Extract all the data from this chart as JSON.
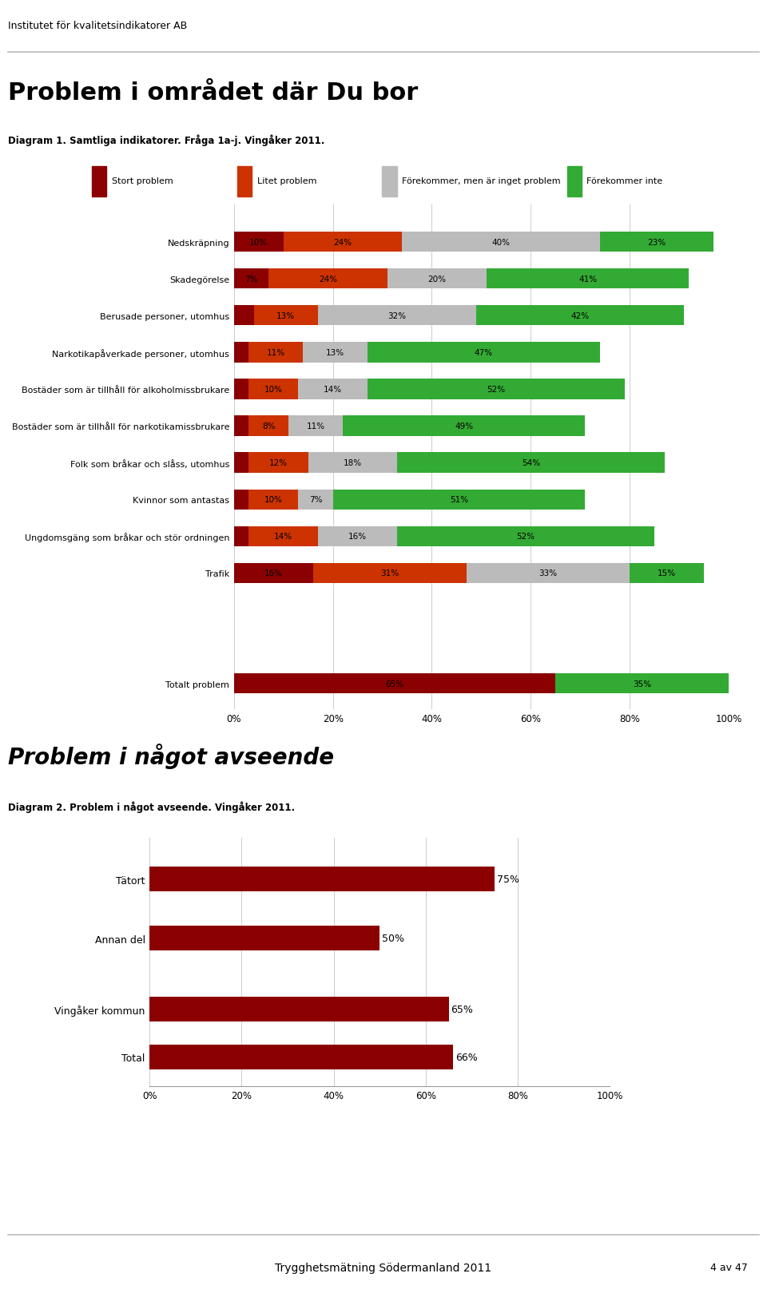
{
  "header_text": "Institutet för kvalitetsindikatorer AB",
  "title1": "Problem i området där Du bor",
  "subtitle1": "Diagram 1. Samtliga indikatorer. Fråga 1a-j. Vingåker 2011.",
  "legend_labels": [
    "Stort problem",
    "Litet problem",
    "Förekommer, men är inget problem",
    "Förekommer inte"
  ],
  "colors": [
    "#8B0000",
    "#CC3300",
    "#BBBBBB",
    "#33AA33"
  ],
  "categories1": [
    "Nedskräpning",
    "Skadegörelse",
    "Berusade personer, utomhus",
    "Narkotikapåverkade personer, utomhus",
    "Bostäder som är tillhåll för alkoholmissbrukare",
    "Bostäder som är tillhåll för narkotikamissbrukare",
    "Folk som bråkar och slåss, utomhus",
    "Kvinnor som antastas",
    "Ungdomsgäng som bråkar och stör ordningen",
    "Trafik",
    "Totalt problem"
  ],
  "data1": [
    [
      10,
      24,
      40,
      23
    ],
    [
      7,
      24,
      20,
      41
    ],
    [
      4,
      13,
      32,
      42
    ],
    [
      3,
      11,
      13,
      47
    ],
    [
      3,
      10,
      14,
      52
    ],
    [
      3,
      8,
      11,
      49
    ],
    [
      3,
      12,
      18,
      54
    ],
    [
      3,
      10,
      7,
      51
    ],
    [
      3,
      14,
      16,
      52
    ],
    [
      16,
      31,
      33,
      15
    ],
    [
      65,
      0,
      0,
      35
    ]
  ],
  "title2": "Problem i något avseende",
  "subtitle2": "Diagram 2. Problem i något avseende. Vingåker 2011.",
  "categories2": [
    "Tätort",
    "Annan del",
    "Vingåker kommun",
    "Total"
  ],
  "data2": [
    75,
    50,
    65,
    66
  ],
  "color2": "#8B0000",
  "footer": "Trygghetsmätning Södermanland 2011",
  "page": "4 av 47",
  "bg_color": "#FFFFFF"
}
